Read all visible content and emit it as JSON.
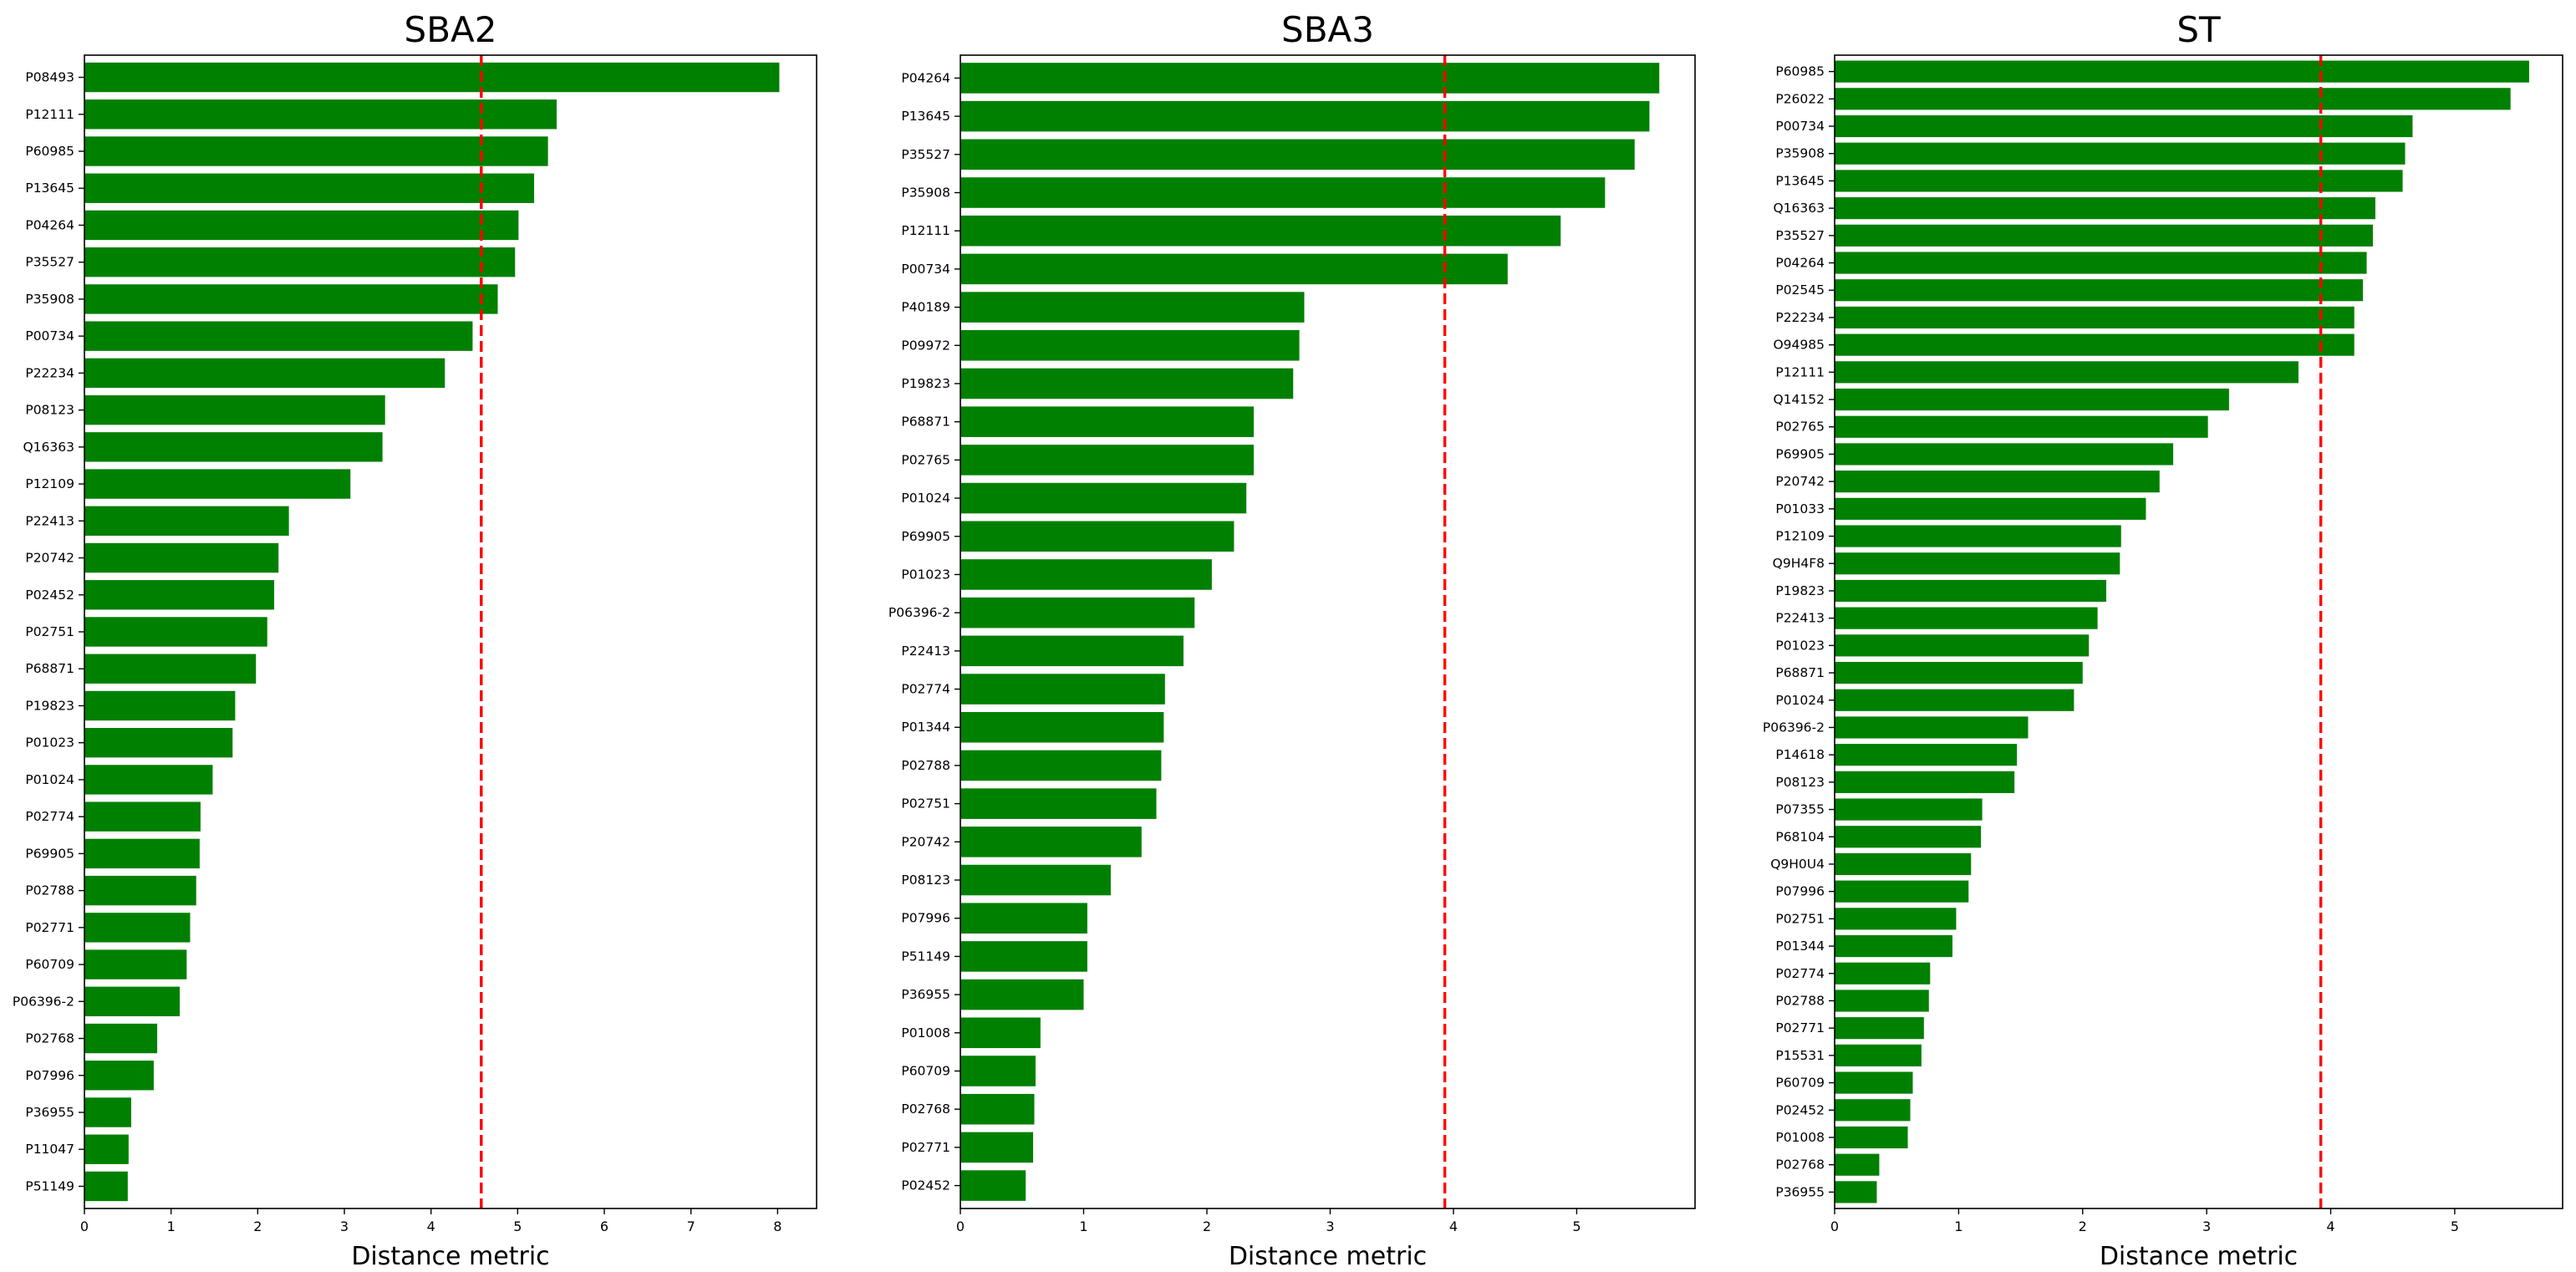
{
  "chart_data": [
    {
      "type": "bar",
      "orientation": "horizontal",
      "title": "SBA2",
      "xlabel": "Distance metric",
      "ylabel": "",
      "xlim": [
        0,
        8.45
      ],
      "xticks": [
        0,
        1,
        2,
        3,
        4,
        5,
        6,
        7,
        8
      ],
      "threshold": 4.58,
      "threshold_style": "dashed",
      "bar_color": "#008000",
      "threshold_color": "#ff0000",
      "categories": [
        "P08493",
        "P12111",
        "P60985",
        "P13645",
        "P04264",
        "P35527",
        "P35908",
        "P00734",
        "P22234",
        "P08123",
        "Q16363",
        "P12109",
        "P22413",
        "P20742",
        "P02452",
        "P02751",
        "P68871",
        "P19823",
        "P01023",
        "P01024",
        "P02774",
        "P69905",
        "P02788",
        "P02771",
        "P60709",
        "P06396-2",
        "P02768",
        "P07996",
        "P36955",
        "P11047",
        "P51149"
      ],
      "values": [
        8.02,
        5.45,
        5.35,
        5.19,
        5.01,
        4.97,
        4.77,
        4.48,
        4.16,
        3.47,
        3.44,
        3.07,
        2.36,
        2.24,
        2.19,
        2.11,
        1.98,
        1.74,
        1.71,
        1.48,
        1.34,
        1.33,
        1.29,
        1.22,
        1.18,
        1.1,
        0.84,
        0.8,
        0.54,
        0.51,
        0.5
      ]
    },
    {
      "type": "bar",
      "orientation": "horizontal",
      "title": "SBA3",
      "xlabel": "Distance metric",
      "ylabel": "",
      "xlim": [
        0,
        5.96
      ],
      "xticks": [
        0,
        1,
        2,
        3,
        4,
        5
      ],
      "threshold": 3.93,
      "threshold_style": "dashed",
      "bar_color": "#008000",
      "threshold_color": "#ff0000",
      "categories": [
        "P04264",
        "P13645",
        "P35527",
        "P35908",
        "P12111",
        "P00734",
        "P40189",
        "P09972",
        "P19823",
        "P68871",
        "P02765",
        "P01024",
        "P69905",
        "P01023",
        "P06396-2",
        "P22413",
        "P02774",
        "P01344",
        "P02788",
        "P02751",
        "P20742",
        "P08123",
        "P07996",
        "P51149",
        "P36955",
        "P01008",
        "P60709",
        "P02768",
        "P02771",
        "P02452"
      ],
      "values": [
        5.67,
        5.59,
        5.47,
        5.23,
        4.87,
        4.44,
        2.79,
        2.75,
        2.7,
        2.38,
        2.38,
        2.32,
        2.22,
        2.04,
        1.9,
        1.81,
        1.66,
        1.65,
        1.63,
        1.59,
        1.47,
        1.22,
        1.03,
        1.03,
        1.0,
        0.65,
        0.61,
        0.6,
        0.59,
        0.53
      ]
    },
    {
      "type": "bar",
      "orientation": "horizontal",
      "title": "ST",
      "xlabel": "Distance metric",
      "ylabel": "",
      "xlim": [
        0,
        5.87
      ],
      "xticks": [
        0,
        1,
        2,
        3,
        4,
        5
      ],
      "threshold": 3.92,
      "threshold_style": "dashed",
      "bar_color": "#008000",
      "threshold_color": "#ff0000",
      "categories": [
        "P60985",
        "P26022",
        "P00734",
        "P35908",
        "P13645",
        "Q16363",
        "P35527",
        "P04264",
        "P02545",
        "P22234",
        "O94985",
        "P12111",
        "Q14152",
        "P02765",
        "P69905",
        "P20742",
        "P01033",
        "P12109",
        "Q9H4F8",
        "P19823",
        "P22413",
        "P01023",
        "P68871",
        "P01024",
        "P06396-2",
        "P14618",
        "P08123",
        "P07355",
        "P68104",
        "Q9H0U4",
        "P07996",
        "P02751",
        "P01344",
        "P02774",
        "P02788",
        "P02771",
        "P15531",
        "P60709",
        "P02452",
        "P01008",
        "P02768",
        "P36955"
      ],
      "values": [
        5.6,
        5.45,
        4.66,
        4.6,
        4.58,
        4.36,
        4.34,
        4.29,
        4.26,
        4.19,
        4.19,
        3.74,
        3.18,
        3.01,
        2.73,
        2.62,
        2.51,
        2.31,
        2.3,
        2.19,
        2.12,
        2.05,
        2.0,
        1.93,
        1.56,
        1.47,
        1.45,
        1.19,
        1.18,
        1.1,
        1.08,
        0.98,
        0.95,
        0.77,
        0.76,
        0.72,
        0.7,
        0.63,
        0.61,
        0.59,
        0.36,
        0.34
      ]
    }
  ]
}
